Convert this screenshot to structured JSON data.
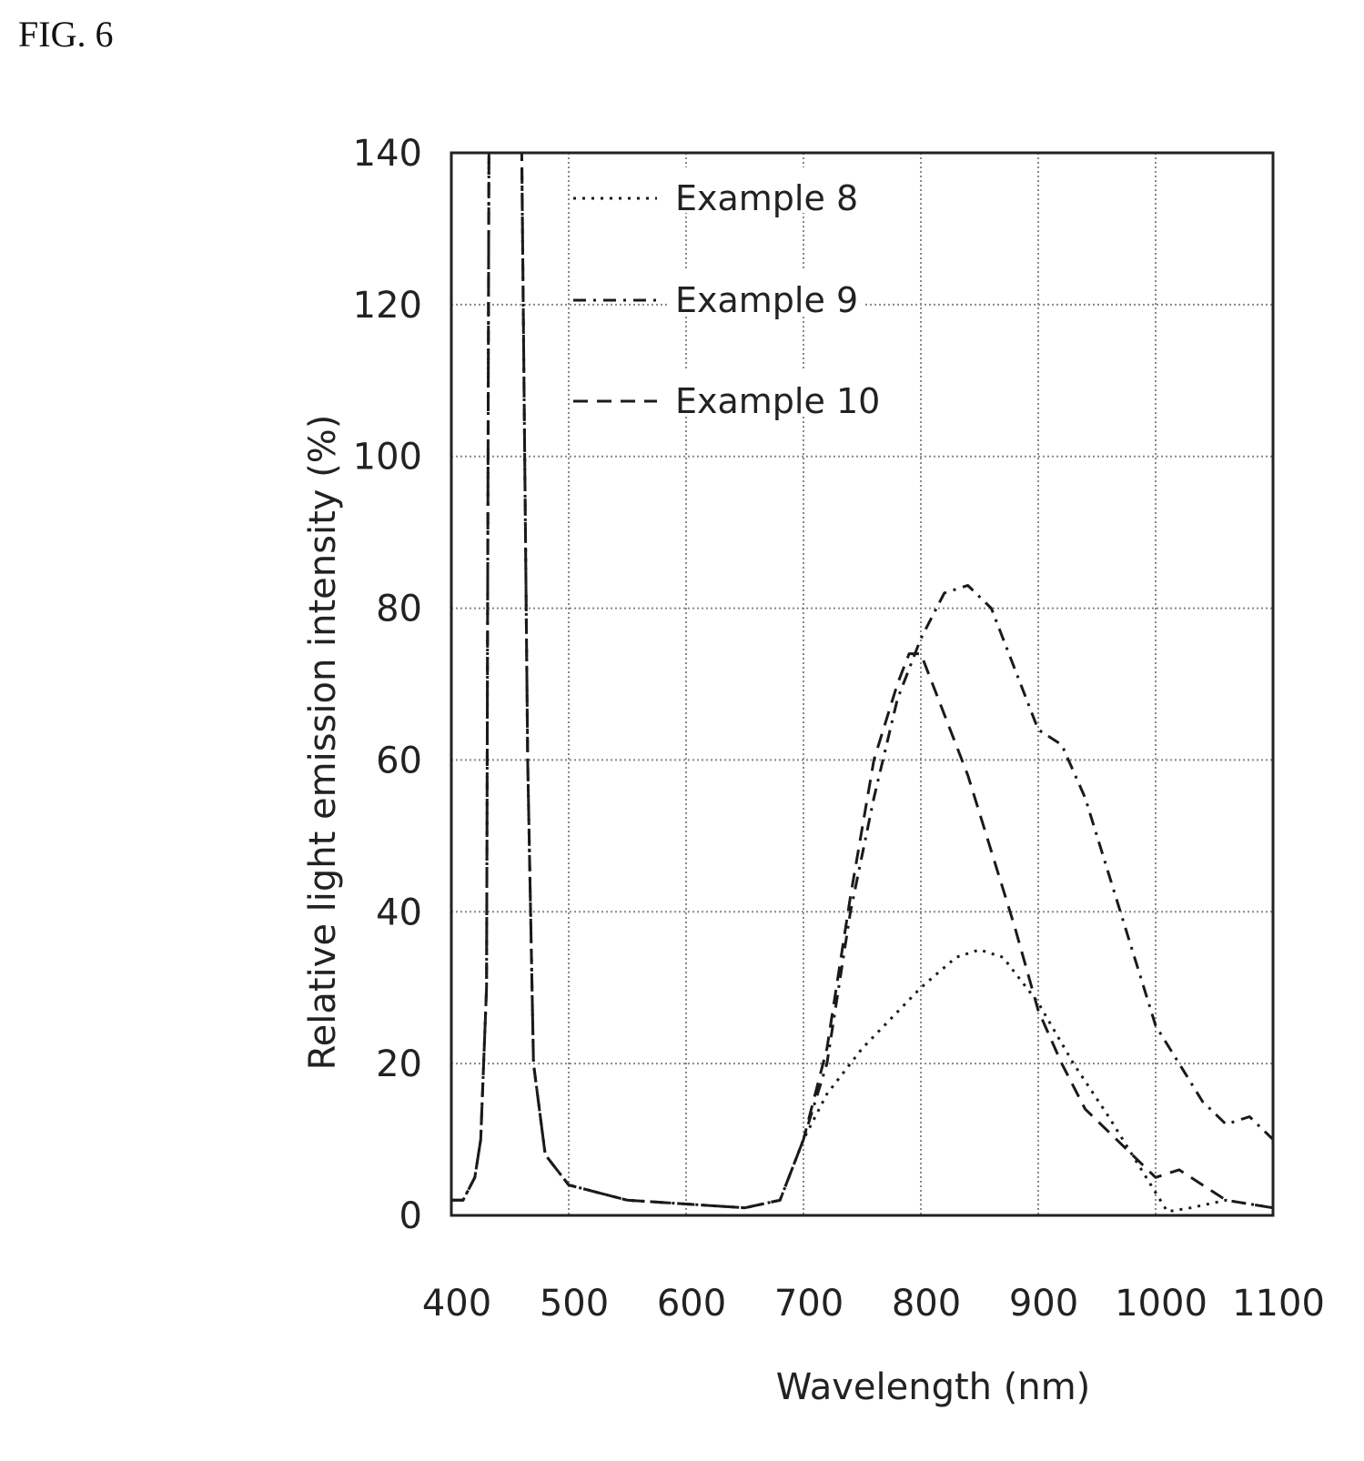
{
  "figure_label": "FIG. 6",
  "chart_data": {
    "type": "line",
    "xlabel": "Wavelength (nm)",
    "ylabel": "Relative light emission intensity (%)",
    "xlim": [
      400,
      1100
    ],
    "ylim": [
      0,
      140
    ],
    "xticks": [
      400,
      500,
      600,
      700,
      800,
      900,
      1000,
      1100
    ],
    "yticks": [
      0,
      20,
      40,
      60,
      80,
      100,
      120,
      140
    ],
    "grid": true,
    "legend_position": "top-left",
    "series": [
      {
        "name": "Example 8",
        "style": "dotted",
        "points": [
          [
            400,
            2
          ],
          [
            410,
            2
          ],
          [
            420,
            5
          ],
          [
            425,
            10
          ],
          [
            430,
            30
          ],
          [
            432,
            140
          ],
          [
            460,
            140
          ],
          [
            465,
            60
          ],
          [
            470,
            20
          ],
          [
            480,
            8
          ],
          [
            500,
            4
          ],
          [
            550,
            2
          ],
          [
            600,
            1.5
          ],
          [
            650,
            1
          ],
          [
            680,
            2
          ],
          [
            700,
            10
          ],
          [
            720,
            16
          ],
          [
            750,
            22
          ],
          [
            800,
            30
          ],
          [
            830,
            34
          ],
          [
            850,
            35
          ],
          [
            870,
            34
          ],
          [
            900,
            28
          ],
          [
            930,
            20
          ],
          [
            960,
            13
          ],
          [
            980,
            8
          ],
          [
            1000,
            3
          ],
          [
            1010,
            0.5
          ],
          [
            1030,
            1
          ],
          [
            1060,
            2
          ],
          [
            1100,
            1
          ]
        ]
      },
      {
        "name": "Example 9",
        "style": "dash-dot",
        "points": [
          [
            400,
            2
          ],
          [
            410,
            2
          ],
          [
            420,
            5
          ],
          [
            425,
            10
          ],
          [
            430,
            30
          ],
          [
            432,
            140
          ],
          [
            460,
            140
          ],
          [
            465,
            60
          ],
          [
            470,
            20
          ],
          [
            480,
            8
          ],
          [
            500,
            4
          ],
          [
            550,
            2
          ],
          [
            600,
            1.5
          ],
          [
            650,
            1
          ],
          [
            680,
            2
          ],
          [
            700,
            10
          ],
          [
            720,
            20
          ],
          [
            740,
            40
          ],
          [
            760,
            55
          ],
          [
            780,
            68
          ],
          [
            800,
            76
          ],
          [
            820,
            82
          ],
          [
            840,
            83
          ],
          [
            860,
            80
          ],
          [
            880,
            72
          ],
          [
            900,
            64
          ],
          [
            920,
            62
          ],
          [
            940,
            55
          ],
          [
            960,
            45
          ],
          [
            980,
            35
          ],
          [
            1000,
            25
          ],
          [
            1020,
            20
          ],
          [
            1040,
            15
          ],
          [
            1060,
            12
          ],
          [
            1080,
            13
          ],
          [
            1100,
            10
          ]
        ]
      },
      {
        "name": "Example 10",
        "style": "dashed",
        "points": [
          [
            400,
            2
          ],
          [
            410,
            2
          ],
          [
            420,
            5
          ],
          [
            425,
            10
          ],
          [
            430,
            30
          ],
          [
            432,
            140
          ],
          [
            460,
            140
          ],
          [
            465,
            60
          ],
          [
            470,
            20
          ],
          [
            480,
            8
          ],
          [
            500,
            4
          ],
          [
            550,
            2
          ],
          [
            600,
            1.5
          ],
          [
            650,
            1
          ],
          [
            680,
            2
          ],
          [
            700,
            10
          ],
          [
            720,
            22
          ],
          [
            740,
            42
          ],
          [
            760,
            60
          ],
          [
            780,
            70
          ],
          [
            790,
            74
          ],
          [
            800,
            74
          ],
          [
            820,
            66
          ],
          [
            840,
            58
          ],
          [
            860,
            48
          ],
          [
            880,
            38
          ],
          [
            900,
            27
          ],
          [
            920,
            20
          ],
          [
            940,
            14
          ],
          [
            960,
            11
          ],
          [
            980,
            8
          ],
          [
            1000,
            5
          ],
          [
            1020,
            6
          ],
          [
            1040,
            4
          ],
          [
            1060,
            2
          ],
          [
            1080,
            1.5
          ],
          [
            1100,
            1
          ]
        ]
      }
    ]
  },
  "colors": {
    "line": "#1a1a1a",
    "grid": "#888888",
    "axis": "#222222"
  }
}
